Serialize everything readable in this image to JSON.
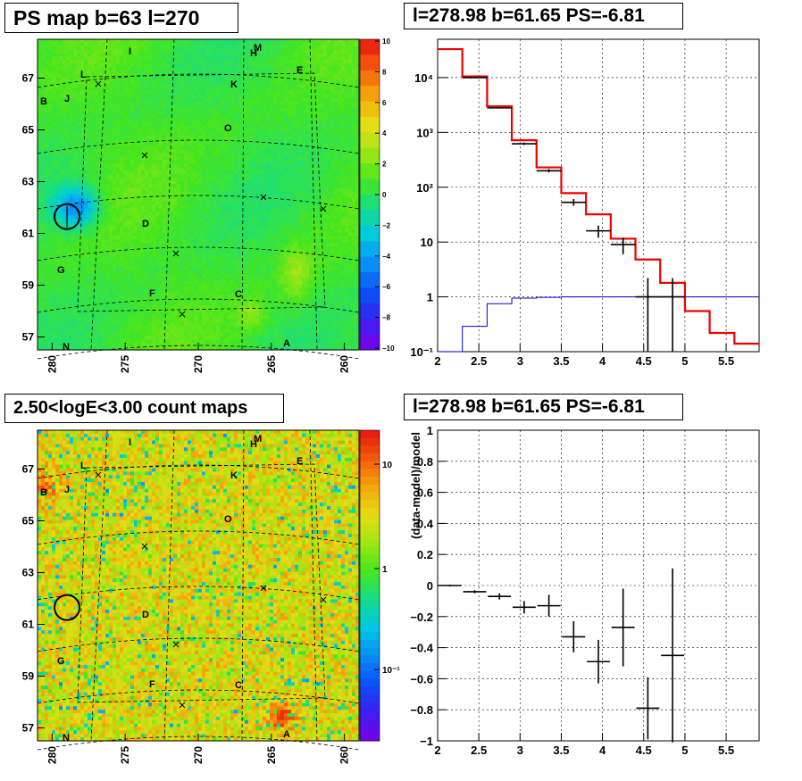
{
  "panels": {
    "ps_map": {
      "title": "PS map b=63 l=270"
    },
    "spectrum": {
      "title": "l=278.98 b=61.65 PS=-6.81"
    },
    "count_map": {
      "title": "2.50<logE<3.00 count maps"
    },
    "residual": {
      "title": "l=278.98 b=61.65 PS=-6.81"
    }
  },
  "maps": {
    "x_ticks": [
      "280",
      "275",
      "270",
      "265",
      "260"
    ],
    "y_ticks": [
      "67",
      "65",
      "63",
      "61",
      "59",
      "57"
    ],
    "source_labels": [
      "I",
      "M",
      "H",
      "L",
      "E",
      "K",
      "B",
      "J",
      "O",
      "D",
      "G",
      "F",
      "C",
      "A",
      "N"
    ],
    "ps_colorbar_ticks": [
      "10",
      "8",
      "6",
      "4",
      "2",
      "0",
      "−2",
      "−4",
      "−6",
      "−8",
      "−10"
    ],
    "count_colorbar_ticks": [
      "10",
      "1",
      "10⁻¹"
    ]
  },
  "chart_data": [
    {
      "type": "heatmap",
      "name": "PS map",
      "x_range": [
        281,
        259
      ],
      "y_range": [
        56.5,
        68.5
      ],
      "z_range": [
        -10,
        10
      ],
      "circle_center": [
        278.98,
        61.65
      ]
    },
    {
      "type": "line",
      "name": "spectrum",
      "xlim": [
        2,
        5.9
      ],
      "ylim": [
        0.1,
        50000
      ],
      "yscale": "log",
      "x_ticks": [
        "2",
        "2.5",
        "3",
        "3.5",
        "4",
        "4.5",
        "5",
        "5.5"
      ],
      "y_ticks": [
        "10⁻¹",
        "1",
        "10",
        "10²",
        "10³",
        "10⁴"
      ],
      "edges": [
        2.0,
        2.3,
        2.6,
        2.9,
        3.2,
        3.5,
        3.8,
        4.1,
        4.4,
        4.7,
        5.0,
        5.3,
        5.6,
        5.9
      ],
      "model": [
        33000,
        10500,
        3000,
        720,
        230,
        78,
        32,
        11.5,
        4.8,
        1.8,
        0.55,
        0.22,
        0.14
      ],
      "background": [
        0.1,
        0.29,
        0.75,
        0.95,
        0.98,
        1.0,
        1.0,
        1.0,
        1.0,
        1.0,
        1.0,
        1.0,
        1.0
      ],
      "data": [
        {
          "x": 2.45,
          "y": 10000,
          "lo": 9900,
          "hi": 10100
        },
        {
          "x": 2.75,
          "y": 2800,
          "lo": 2750,
          "hi": 2850
        },
        {
          "x": 3.05,
          "y": 620,
          "lo": 590,
          "hi": 650
        },
        {
          "x": 3.35,
          "y": 200,
          "lo": 186,
          "hi": 214
        },
        {
          "x": 3.65,
          "y": 53,
          "lo": 46,
          "hi": 61
        },
        {
          "x": 3.95,
          "y": 16,
          "lo": 12,
          "hi": 20
        },
        {
          "x": 4.25,
          "y": 9,
          "lo": 6,
          "hi": 12
        },
        {
          "x": 4.55,
          "y": 1,
          "lo": 0.1,
          "hi": 2.2
        },
        {
          "x": 4.85,
          "y": 1,
          "lo": 0.1,
          "hi": 2.2
        }
      ]
    },
    {
      "type": "heatmap",
      "name": "count map",
      "x_range": [
        281,
        259
      ],
      "y_range": [
        56.5,
        68.5
      ],
      "z_scale": "log",
      "circle_center": [
        278.98,
        61.65
      ]
    },
    {
      "type": "scatter",
      "name": "residual",
      "xlim": [
        2,
        5.9
      ],
      "ylim": [
        -1,
        1
      ],
      "ylabel": "(data-model)/model",
      "x_ticks": [
        "2",
        "2.5",
        "3",
        "3.5",
        "4",
        "4.5",
        "5",
        "5.5"
      ],
      "y_ticks": [
        "−1",
        "−0.8",
        "−0.6",
        "−0.4",
        "−0.2",
        "0",
        "0.2",
        "0.4",
        "0.6",
        "0.8",
        "1"
      ],
      "points": [
        {
          "x": 2.15,
          "y": 0.0,
          "err": 0.005
        },
        {
          "x": 2.45,
          "y": -0.04,
          "err": 0.01
        },
        {
          "x": 2.75,
          "y": -0.07,
          "err": 0.02
        },
        {
          "x": 3.05,
          "y": -0.14,
          "err": 0.04
        },
        {
          "x": 3.35,
          "y": -0.13,
          "err": 0.07
        },
        {
          "x": 3.65,
          "y": -0.33,
          "err": 0.1
        },
        {
          "x": 3.95,
          "y": -0.49,
          "err": 0.14
        },
        {
          "x": 4.25,
          "y": -0.27,
          "err": 0.25
        },
        {
          "x": 4.55,
          "y": -0.79,
          "err": 0.2
        },
        {
          "x": 4.85,
          "y": -0.45,
          "err": 0.56
        }
      ]
    }
  ]
}
